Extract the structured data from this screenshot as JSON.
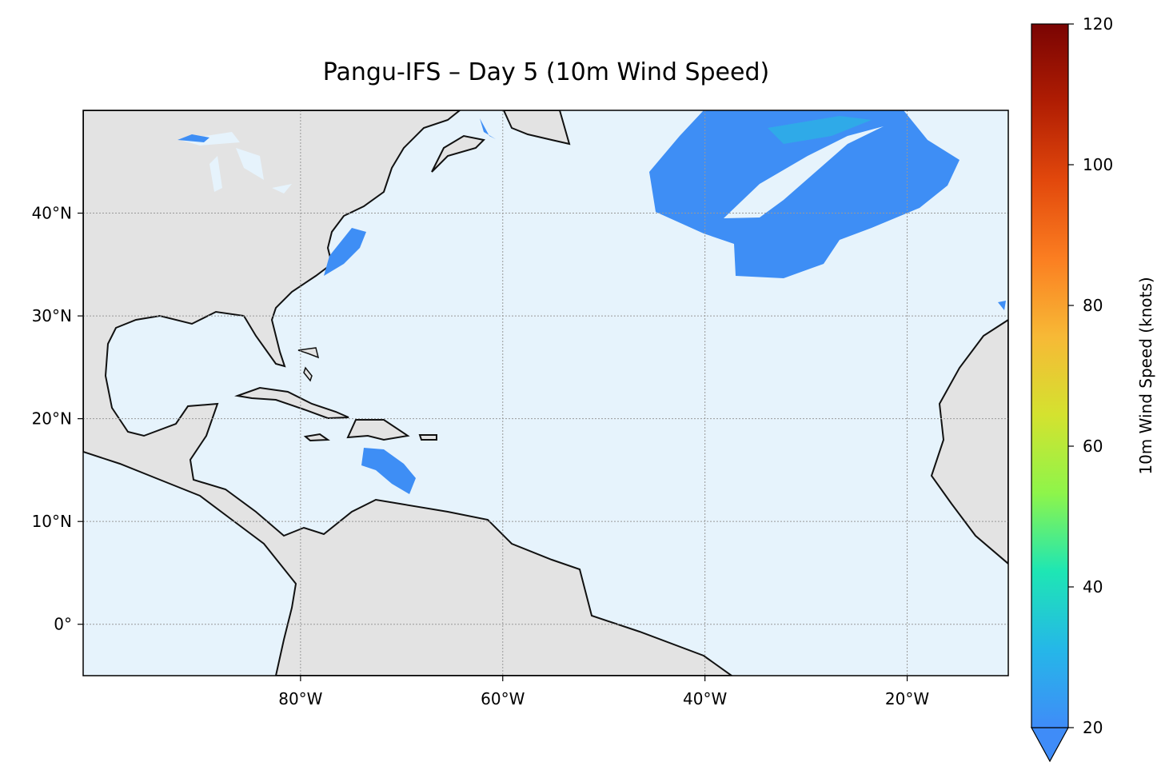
{
  "chart_data": {
    "type": "map",
    "title": "Pangu-IFS – Day 5 (10m Wind Speed)",
    "xlim": [
      -101.5,
      -10
    ],
    "ylim": [
      -5,
      50
    ],
    "xticks": [
      {
        "value": -80,
        "label": "80°W"
      },
      {
        "value": -60,
        "label": "60°W"
      },
      {
        "value": -40,
        "label": "40°W"
      },
      {
        "value": -20,
        "label": "20°W"
      }
    ],
    "yticks": [
      {
        "value": 0,
        "label": "0°"
      },
      {
        "value": 10,
        "label": "10°N"
      },
      {
        "value": 20,
        "label": "20°N"
      },
      {
        "value": 30,
        "label": "30°N"
      },
      {
        "value": 40,
        "label": "40°N"
      }
    ],
    "grid": true,
    "colorbar": {
      "label": "10m Wind Speed (knots)",
      "lim": [
        20,
        120
      ],
      "ticks": [
        20,
        40,
        60,
        80,
        100,
        120
      ],
      "colors": [
        "#3f8cf8",
        "#25b7e8",
        "#1ee6b4",
        "#8ef54a",
        "#d4e22f",
        "#f7b936",
        "#fb7e21",
        "#e2480c",
        "#b01d03",
        "#7a0403"
      ]
    }
  }
}
